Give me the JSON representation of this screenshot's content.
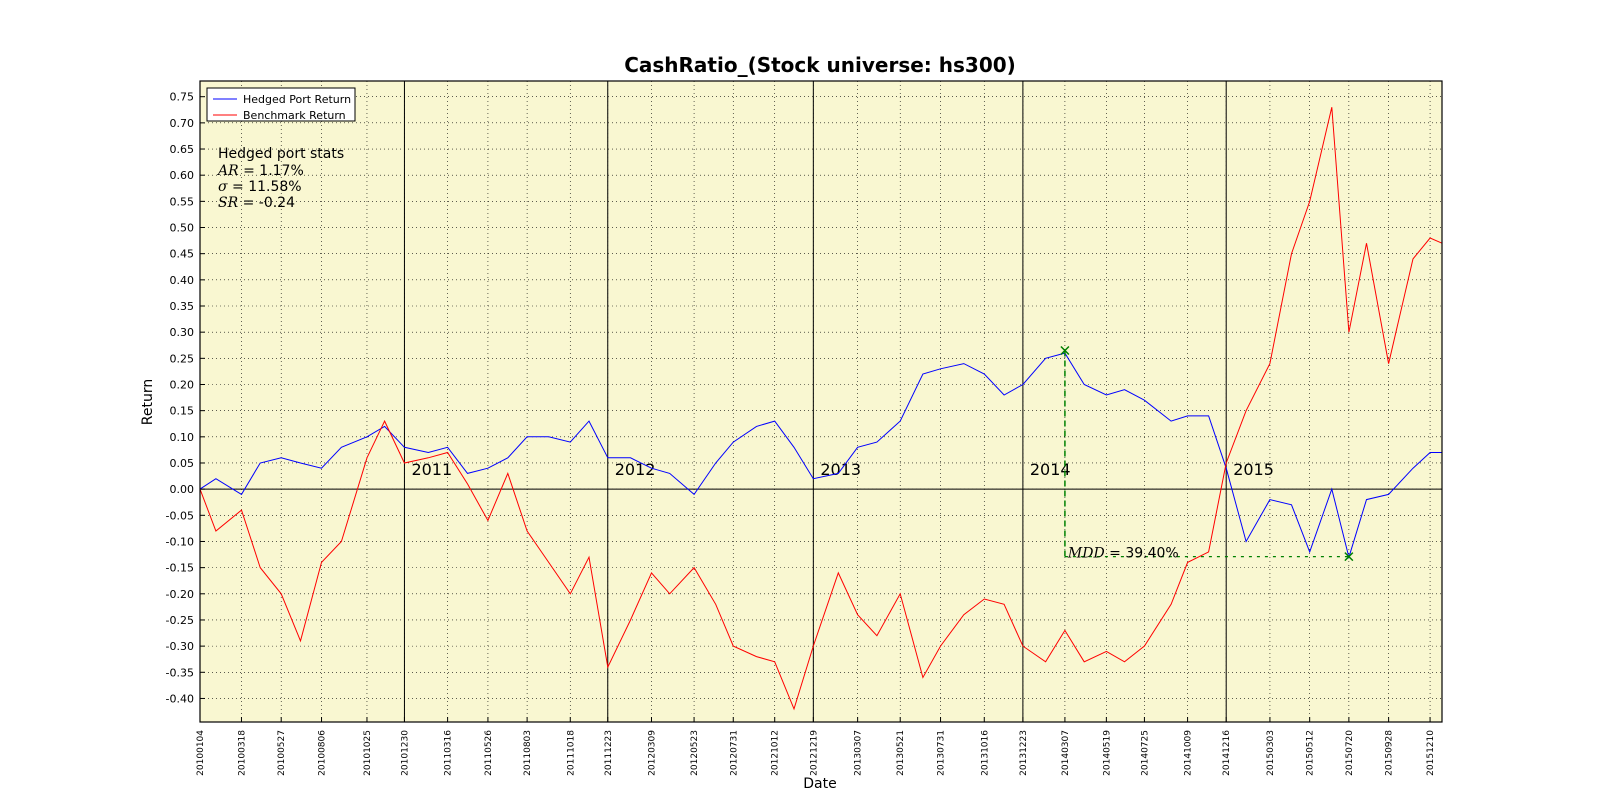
{
  "chart_data": {
    "type": "line",
    "title": "CashRatio_(Stock universe: hs300)",
    "xlabel": "Date",
    "ylabel": "Return",
    "ylim": [
      -0.445,
      0.78
    ],
    "y_ticks": [
      -0.4,
      -0.35,
      -0.3,
      -0.25,
      -0.2,
      -0.15,
      -0.1,
      -0.05,
      0.0,
      0.05,
      0.1,
      0.15,
      0.2,
      0.25,
      0.3,
      0.35,
      0.4,
      0.45,
      0.5,
      0.55,
      0.6,
      0.65,
      0.7,
      0.75
    ],
    "y_tick_labels": [
      "-0.40",
      "-0.35",
      "-0.30",
      "-0.25",
      "-0.20",
      "-0.15",
      "-0.10",
      "-0.05",
      "0.00",
      "0.05",
      "0.10",
      "0.15",
      "0.20",
      "0.25",
      "0.30",
      "0.35",
      "0.40",
      "0.45",
      "0.50",
      "0.55",
      "0.60",
      "0.65",
      "0.70",
      "0.75"
    ],
    "x_tick_labels": [
      "20100104",
      "20100318",
      "20100527",
      "20100806",
      "20101025",
      "20101230",
      "20110316",
      "20110526",
      "20110803",
      "20111018",
      "20111223",
      "20120309",
      "20120523",
      "20120731",
      "20121012",
      "20121219",
      "20130307",
      "20130521",
      "20130731",
      "20131016",
      "20131223",
      "20140307",
      "20140519",
      "20140725",
      "20141009",
      "20141216",
      "20150303",
      "20150512",
      "20150720",
      "20150928",
      "20151210"
    ],
    "grid": true,
    "legend_position": "top-left",
    "series": [
      {
        "name": "Hedged Port Return",
        "color": "#0000ff",
        "points": [
          [
            "20100104",
            0.0
          ],
          [
            "20100201",
            0.02
          ],
          [
            "20100318",
            -0.01
          ],
          [
            "20100420",
            0.05
          ],
          [
            "20100527",
            0.06
          ],
          [
            "20100630",
            0.05
          ],
          [
            "20100806",
            0.04
          ],
          [
            "20100910",
            0.08
          ],
          [
            "20101025",
            0.1
          ],
          [
            "20101125",
            0.12
          ],
          [
            "20101230",
            0.08
          ],
          [
            "20110210",
            0.07
          ],
          [
            "20110316",
            0.08
          ],
          [
            "20110420",
            0.03
          ],
          [
            "20110526",
            0.04
          ],
          [
            "20110630",
            0.06
          ],
          [
            "20110803",
            0.1
          ],
          [
            "20110910",
            0.1
          ],
          [
            "20111018",
            0.09
          ],
          [
            "20111120",
            0.13
          ],
          [
            "20111223",
            0.06
          ],
          [
            "20120201",
            0.06
          ],
          [
            "20120309",
            0.04
          ],
          [
            "20120410",
            0.03
          ],
          [
            "20120523",
            -0.01
          ],
          [
            "20120630",
            0.05
          ],
          [
            "20120731",
            0.09
          ],
          [
            "20120910",
            0.12
          ],
          [
            "20121012",
            0.13
          ],
          [
            "20121115",
            0.08
          ],
          [
            "20121219",
            0.02
          ],
          [
            "20130201",
            0.03
          ],
          [
            "20130307",
            0.08
          ],
          [
            "20130410",
            0.09
          ],
          [
            "20130521",
            0.13
          ],
          [
            "20130630",
            0.22
          ],
          [
            "20130731",
            0.23
          ],
          [
            "20130910",
            0.24
          ],
          [
            "20131016",
            0.22
          ],
          [
            "20131120",
            0.18
          ],
          [
            "20131223",
            0.2
          ],
          [
            "20140201",
            0.25
          ],
          [
            "20140307",
            0.26
          ],
          [
            "20140410",
            0.2
          ],
          [
            "20140519",
            0.18
          ],
          [
            "20140620",
            0.19
          ],
          [
            "20140725",
            0.17
          ],
          [
            "20140910",
            0.13
          ],
          [
            "20141009",
            0.14
          ],
          [
            "20141115",
            0.14
          ],
          [
            "20141216",
            0.04
          ],
          [
            "20150120",
            -0.1
          ],
          [
            "20150303",
            -0.02
          ],
          [
            "20150410",
            -0.03
          ],
          [
            "20150512",
            -0.12
          ],
          [
            "20150620",
            0.0
          ],
          [
            "20150720",
            -0.13
          ],
          [
            "20150820",
            -0.02
          ],
          [
            "20150928",
            -0.01
          ],
          [
            "20151110",
            0.04
          ],
          [
            "20151210",
            0.07
          ],
          [
            "20151231",
            0.07
          ]
        ]
      },
      {
        "name": "Benchmark Return",
        "color": "#ff0000",
        "points": [
          [
            "20100104",
            0.0
          ],
          [
            "20100201",
            -0.08
          ],
          [
            "20100318",
            -0.04
          ],
          [
            "20100420",
            -0.15
          ],
          [
            "20100527",
            -0.2
          ],
          [
            "20100630",
            -0.29
          ],
          [
            "20100806",
            -0.14
          ],
          [
            "20100910",
            -0.1
          ],
          [
            "20101025",
            0.06
          ],
          [
            "20101125",
            0.13
          ],
          [
            "20101230",
            0.05
          ],
          [
            "20110210",
            0.06
          ],
          [
            "20110316",
            0.07
          ],
          [
            "20110420",
            0.01
          ],
          [
            "20110526",
            -0.06
          ],
          [
            "20110630",
            0.03
          ],
          [
            "20110803",
            -0.08
          ],
          [
            "20110910",
            -0.14
          ],
          [
            "20111018",
            -0.2
          ],
          [
            "20111120",
            -0.13
          ],
          [
            "20111223",
            -0.34
          ],
          [
            "20120201",
            -0.25
          ],
          [
            "20120309",
            -0.16
          ],
          [
            "20120410",
            -0.2
          ],
          [
            "20120523",
            -0.15
          ],
          [
            "20120630",
            -0.22
          ],
          [
            "20120731",
            -0.3
          ],
          [
            "20120910",
            -0.32
          ],
          [
            "20121012",
            -0.33
          ],
          [
            "20121115",
            -0.42
          ],
          [
            "20121219",
            -0.3
          ],
          [
            "20130201",
            -0.16
          ],
          [
            "20130307",
            -0.24
          ],
          [
            "20130410",
            -0.28
          ],
          [
            "20130521",
            -0.2
          ],
          [
            "20130630",
            -0.36
          ],
          [
            "20130731",
            -0.3
          ],
          [
            "20130910",
            -0.24
          ],
          [
            "20131016",
            -0.21
          ],
          [
            "20131120",
            -0.22
          ],
          [
            "20131223",
            -0.3
          ],
          [
            "20140201",
            -0.33
          ],
          [
            "20140307",
            -0.27
          ],
          [
            "20140410",
            -0.33
          ],
          [
            "20140519",
            -0.31
          ],
          [
            "20140620",
            -0.33
          ],
          [
            "20140725",
            -0.3
          ],
          [
            "20140910",
            -0.22
          ],
          [
            "20141009",
            -0.14
          ],
          [
            "20141115",
            -0.12
          ],
          [
            "20141216",
            0.05
          ],
          [
            "20150120",
            0.15
          ],
          [
            "20150303",
            0.24
          ],
          [
            "20150410",
            0.45
          ],
          [
            "20150512",
            0.55
          ],
          [
            "20150620",
            0.73
          ],
          [
            "20150720",
            0.3
          ],
          [
            "20150820",
            0.47
          ],
          [
            "20150928",
            0.24
          ],
          [
            "20151110",
            0.44
          ],
          [
            "20151210",
            0.48
          ],
          [
            "20151231",
            0.47
          ]
        ]
      }
    ],
    "year_markers": [
      {
        "label": "2011",
        "date": "20101230"
      },
      {
        "label": "2012",
        "date": "20111223"
      },
      {
        "label": "2013",
        "date": "20121219"
      },
      {
        "label": "2014",
        "date": "20131223"
      },
      {
        "label": "2015",
        "date": "20141216"
      }
    ],
    "stats": {
      "title": "Hedged port stats",
      "ar_label": "AR =",
      "ar_value": "1.17%",
      "sigma_label": "σ =",
      "sigma_value": "11.58%",
      "sr_label": "SR =",
      "sr_value": "-0.24"
    },
    "mdd": {
      "label": "MDD =",
      "value": "39.40%",
      "peak": [
        "20140307",
        0.265
      ],
      "trough": [
        "20150720",
        -0.129
      ]
    },
    "colors": {
      "plot_background": "#f9f7d1",
      "hedged": "#0000ff",
      "benchmark": "#ff0000",
      "mdd": "#008000"
    }
  }
}
